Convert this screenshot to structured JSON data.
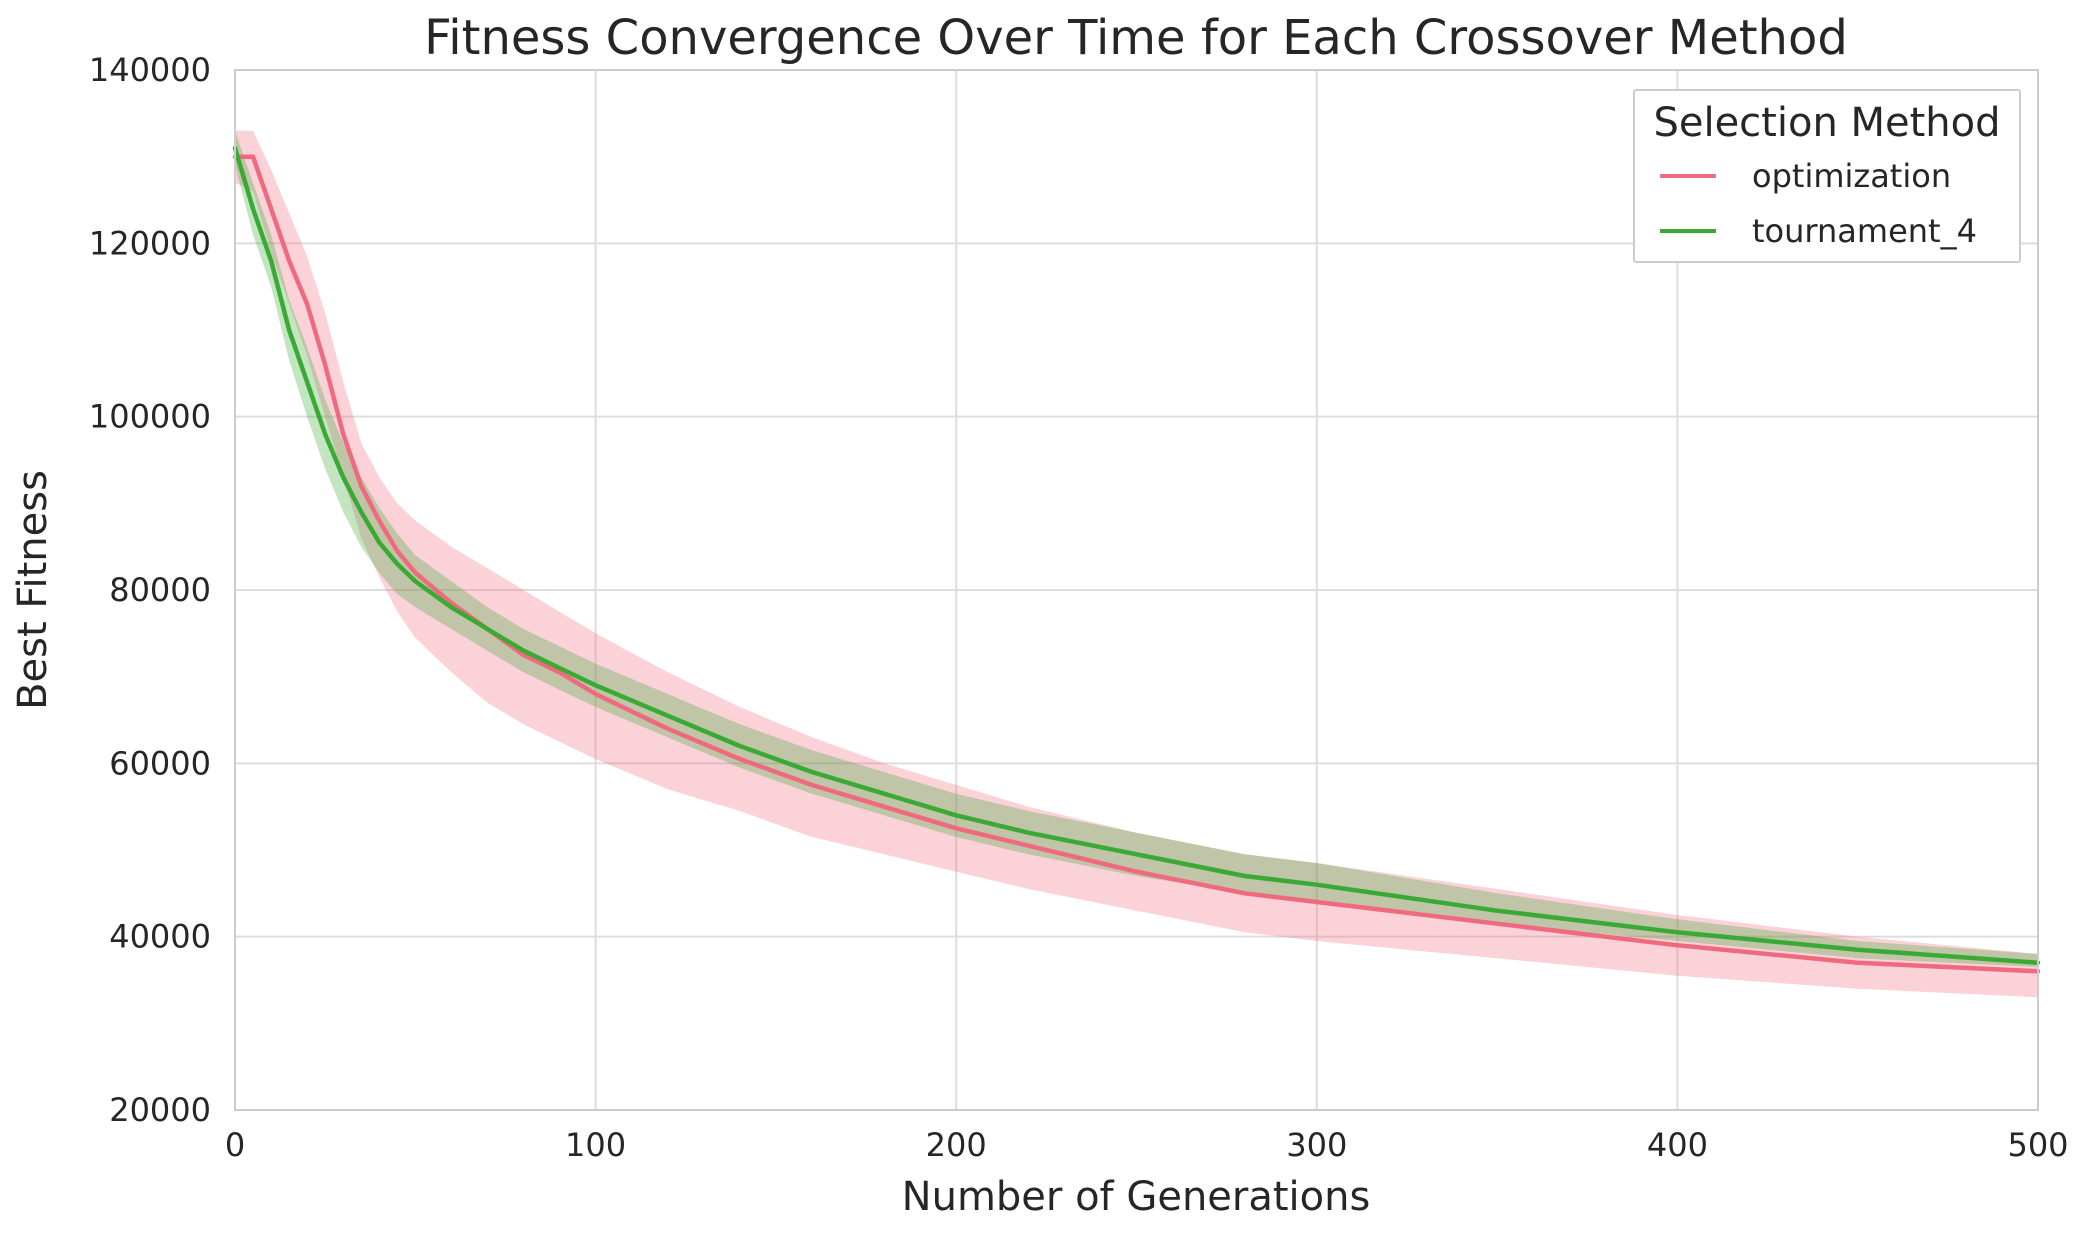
{
  "chart_data": {
    "type": "line",
    "title": "Fitness Convergence Over Time for Each Crossover Method",
    "xlabel": "Number of Generations",
    "ylabel": "Best Fitness",
    "xlim": [
      0,
      500
    ],
    "ylim": [
      20000,
      140000
    ],
    "x_ticks": [
      "0",
      "100",
      "200",
      "300",
      "400",
      "500"
    ],
    "y_ticks": [
      "20000",
      "40000",
      "60000",
      "80000",
      "100000",
      "120000",
      "140000"
    ],
    "grid": true,
    "legend": {
      "title": "Selection Method",
      "placement": "top-right"
    },
    "series": [
      {
        "name": "optimization",
        "color": "#f06a7f",
        "x": [
          0,
          5,
          10,
          15,
          20,
          25,
          30,
          35,
          40,
          45,
          50,
          60,
          70,
          80,
          90,
          100,
          120,
          140,
          160,
          180,
          200,
          220,
          250,
          280,
          300,
          350,
          400,
          450,
          500
        ],
        "y": [
          130000,
          130000,
          124000,
          118000,
          113000,
          106000,
          98000,
          92000,
          88000,
          84500,
          82000,
          78500,
          75500,
          72500,
          70500,
          68000,
          64000,
          60500,
          57500,
          55000,
          52500,
          50500,
          47500,
          45000,
          44000,
          41500,
          39000,
          37000,
          36000
        ],
        "band_lower": [
          127000,
          126000,
          119000,
          113000,
          107000,
          100000,
          93000,
          86000,
          81500,
          77500,
          74500,
          70500,
          67000,
          64500,
          62500,
          60500,
          57000,
          54500,
          51500,
          49500,
          47500,
          45500,
          43000,
          40500,
          39500,
          37500,
          35500,
          34000,
          33000
        ],
        "band_upper": [
          133000,
          133000,
          128500,
          123500,
          118500,
          112000,
          104000,
          97000,
          93000,
          90000,
          88000,
          85000,
          82500,
          80000,
          77500,
          75000,
          70500,
          66500,
          63000,
          60000,
          57500,
          55000,
          52000,
          49500,
          48500,
          45500,
          42500,
          40000,
          38000
        ]
      },
      {
        "name": "tournament_4",
        "color": "#3aaa35",
        "x": [
          0,
          5,
          10,
          15,
          20,
          25,
          30,
          35,
          40,
          45,
          50,
          60,
          70,
          80,
          90,
          100,
          120,
          140,
          160,
          180,
          200,
          220,
          250,
          280,
          300,
          350,
          400,
          450,
          500
        ],
        "y": [
          131000,
          124000,
          118000,
          110000,
          104000,
          98000,
          93000,
          89000,
          85500,
          83000,
          81000,
          78000,
          75500,
          73000,
          71000,
          69000,
          65500,
          62000,
          59000,
          56500,
          54000,
          52000,
          49500,
          47000,
          46000,
          43000,
          40500,
          38500,
          37000
        ],
        "band_lower": [
          129000,
          121000,
          115000,
          106500,
          100000,
          94000,
          89000,
          85000,
          82000,
          79500,
          78000,
          75500,
          73000,
          70500,
          68500,
          66500,
          63000,
          59500,
          56500,
          54000,
          51500,
          49500,
          47000,
          45000,
          44000,
          41500,
          39500,
          37500,
          36500
        ],
        "band_upper": [
          133000,
          127000,
          121000,
          113500,
          108000,
          102000,
          97000,
          93000,
          89500,
          86500,
          84000,
          81000,
          78000,
          75500,
          73500,
          71500,
          68000,
          64500,
          61500,
          59000,
          56500,
          54500,
          52000,
          49500,
          48500,
          45000,
          42000,
          39500,
          38000
        ]
      }
    ]
  }
}
